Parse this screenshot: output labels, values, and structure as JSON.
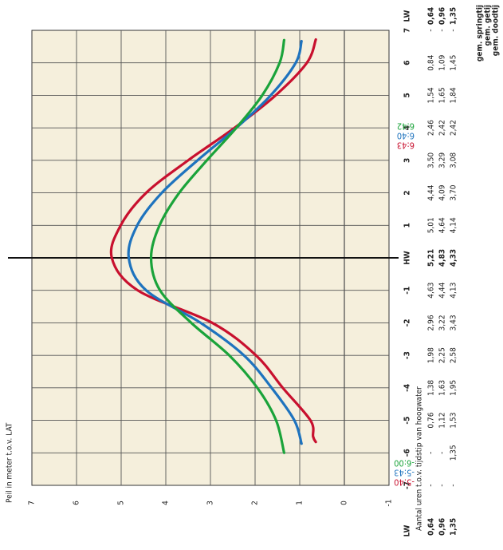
{
  "chart_data": {
    "type": "line",
    "ylabel": "Peil in meter t.o.v. LAT",
    "xlabel": "Aantal uren t.o.v. tijdstip van hoogwater",
    "x_ticks": [
      "LW",
      "-7",
      "-6",
      "-5",
      "-4",
      "-3",
      "-2",
      "-1",
      "HW",
      "1",
      "2",
      "3",
      "4",
      "5",
      "6",
      "7",
      "LW"
    ],
    "y_ticks": [
      "7",
      "6",
      "5",
      "4",
      "3",
      "2",
      "1",
      "0",
      "-1"
    ],
    "ylim": [
      -1,
      7
    ],
    "xlim": [
      -7,
      7
    ],
    "grid": true,
    "series": [
      {
        "name": "gem. springtij",
        "color": "#c8102e",
        "start_label": "-5:40",
        "end_label": "6:43",
        "lw": "0,64",
        "hw": "5,21",
        "table_values": [
          "0,64",
          "-",
          "-",
          "0,76",
          "1,38",
          "1,98",
          "2,96",
          "4,63",
          "5,21",
          "5,01",
          "4,44",
          "3,50",
          "2,46",
          "1,54",
          "0,84",
          "-",
          "0,64"
        ],
        "x": [
          -5.667,
          -5.5,
          -5,
          -4,
          -3,
          -2,
          -1,
          0,
          1,
          2,
          3,
          4,
          5,
          6,
          6.717
        ],
        "y": [
          0.64,
          0.7,
          0.76,
          1.38,
          1.98,
          2.96,
          4.63,
          5.21,
          5.01,
          4.44,
          3.5,
          2.46,
          1.54,
          0.84,
          0.64
        ]
      },
      {
        "name": "gem. getij",
        "color": "#1e73be",
        "start_label": "-5:43",
        "end_label": "6:40",
        "lw": "0,96",
        "hw": "4,83",
        "table_values": [
          "0,96",
          "-",
          "-",
          "1,12",
          "1,63",
          "2,25",
          "3,22",
          "4,44",
          "4,83",
          "4,64",
          "4,09",
          "3,29",
          "2,42",
          "1,65",
          "1,09",
          "-",
          "0,96"
        ],
        "x": [
          -5.717,
          -5,
          -4,
          -3,
          -2,
          -1,
          0,
          1,
          2,
          3,
          4,
          5,
          6,
          6.667
        ],
        "y": [
          0.96,
          1.12,
          1.63,
          2.25,
          3.22,
          4.44,
          4.83,
          4.64,
          4.09,
          3.29,
          2.42,
          1.65,
          1.09,
          0.96
        ]
      },
      {
        "name": "gem. doodtij",
        "color": "#1aa33a",
        "start_label": "-6:00",
        "end_label": "6:42",
        "lw": "1,35",
        "hw": "4,33",
        "table_values": [
          "1,35",
          "-",
          "1,35",
          "1,53",
          "1,95",
          "2,58",
          "3,43",
          "4,13",
          "4,33",
          "4,14",
          "3,70",
          "3,08",
          "2,42",
          "1,84",
          "1,45",
          "-",
          "1,35"
        ],
        "x": [
          -6,
          -5,
          -4,
          -3,
          -2,
          -1,
          0,
          1,
          2,
          3,
          4,
          5,
          6,
          6.7
        ],
        "y": [
          1.35,
          1.53,
          1.95,
          2.58,
          3.43,
          4.13,
          4.33,
          4.14,
          3.7,
          3.08,
          2.42,
          1.84,
          1.45,
          1.35
        ]
      }
    ]
  }
}
